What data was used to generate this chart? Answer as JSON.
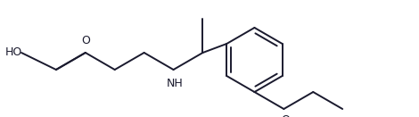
{
  "bg_color": "#ffffff",
  "line_color": "#1a1a2e",
  "text_color": "#1a1a2e",
  "line_width": 1.5,
  "font_size": 9,
  "figsize": [
    4.7,
    1.31
  ],
  "dpi": 100,
  "xlim": [
    0,
    4.7
  ],
  "ylim": [
    0,
    1.31
  ],
  "aspect": "equal"
}
